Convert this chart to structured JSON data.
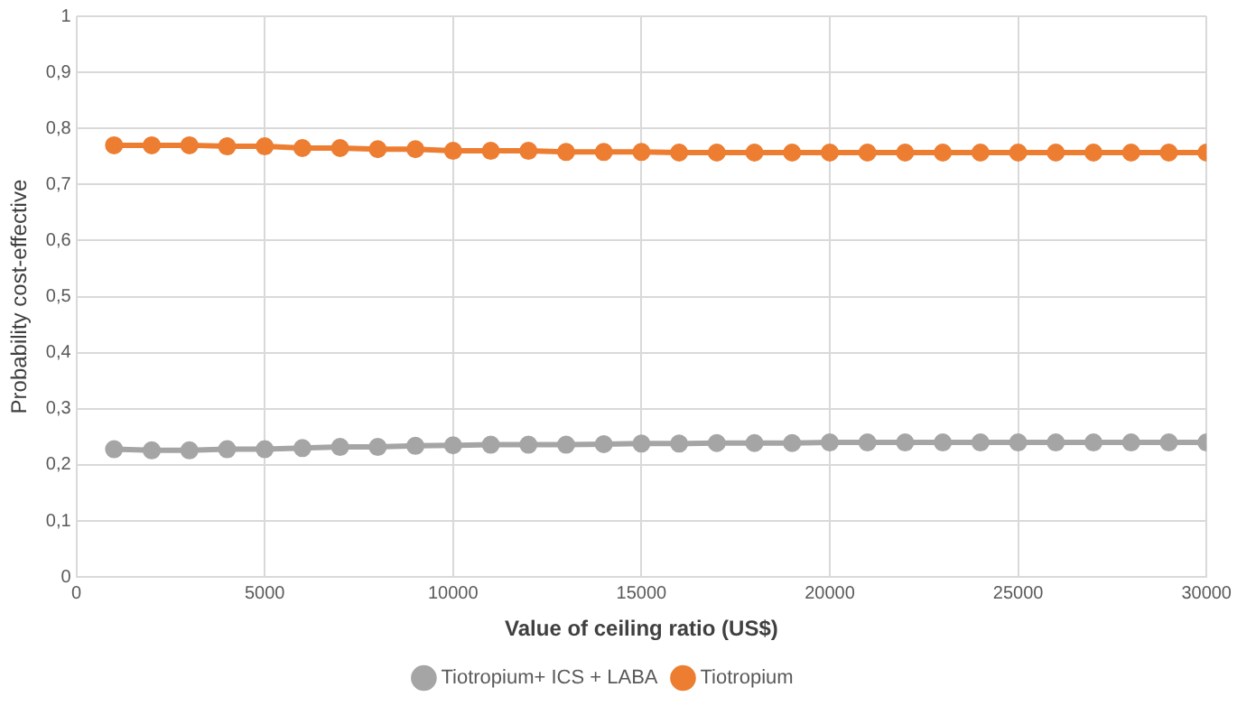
{
  "chart_data": {
    "type": "line",
    "xlabel": "Value of ceiling ratio (US$)",
    "ylabel": "Probability cost-effective",
    "x": [
      1000,
      2000,
      3000,
      4000,
      5000,
      6000,
      7000,
      8000,
      9000,
      10000,
      11000,
      12000,
      13000,
      14000,
      15000,
      16000,
      17000,
      18000,
      19000,
      20000,
      21000,
      22000,
      23000,
      24000,
      25000,
      26000,
      27000,
      28000,
      29000,
      30000
    ],
    "series": [
      {
        "name": "Tiotropium+ ICS + LABA",
        "color": "#a5a5a5",
        "values": [
          0.228,
          0.226,
          0.226,
          0.228,
          0.228,
          0.23,
          0.232,
          0.232,
          0.234,
          0.235,
          0.236,
          0.236,
          0.236,
          0.237,
          0.238,
          0.238,
          0.239,
          0.239,
          0.239,
          0.24,
          0.24,
          0.24,
          0.24,
          0.24,
          0.24,
          0.24,
          0.24,
          0.24,
          0.24,
          0.24
        ]
      },
      {
        "name": "Tiotropium",
        "color": "#ed7d31",
        "values": [
          0.77,
          0.77,
          0.77,
          0.768,
          0.768,
          0.765,
          0.765,
          0.763,
          0.763,
          0.76,
          0.76,
          0.76,
          0.758,
          0.758,
          0.758,
          0.757,
          0.757,
          0.757,
          0.757,
          0.757,
          0.757,
          0.757,
          0.757,
          0.757,
          0.757,
          0.757,
          0.757,
          0.757,
          0.757,
          0.757
        ]
      }
    ],
    "xlim": [
      0,
      30000
    ],
    "xticks": [
      0,
      5000,
      10000,
      15000,
      20000,
      25000,
      30000
    ],
    "ylim": [
      0,
      1
    ],
    "yticks": [
      0,
      {
        "value": 0.1,
        "label": "0,1"
      },
      {
        "value": 0.2,
        "label": "0,2"
      },
      {
        "value": 0.3,
        "label": "0,3"
      },
      {
        "value": 0.4,
        "label": "0,4"
      },
      {
        "value": 0.5,
        "label": "0,5"
      },
      {
        "value": 0.6,
        "label": "0,6"
      },
      {
        "value": 0.7,
        "label": "0,7"
      },
      {
        "value": 0.8,
        "label": "0,8"
      },
      {
        "value": 0.9,
        "label": "0,9"
      },
      1
    ],
    "grid": true,
    "legend": "bottom",
    "marker": "circle",
    "line_style": "solid"
  }
}
